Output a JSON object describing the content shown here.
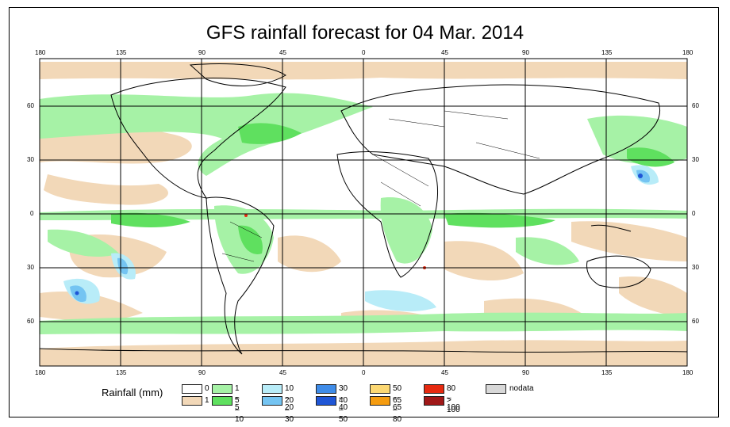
{
  "title": "GFS rainfall forecast for 04 Mar. 2014",
  "axes": {
    "lon_ticks": [
      "180",
      "135",
      "90",
      "45",
      "0",
      "45",
      "90",
      "135",
      "180"
    ],
    "lat_ticks": [
      "60",
      "30",
      "0",
      "30",
      "60"
    ]
  },
  "legend": {
    "title": "Rainfall (mm)",
    "items": [
      {
        "label": "0",
        "color": "#ffffff"
      },
      {
        "label": "1",
        "color": "#f2d8b8"
      },
      {
        "label": "1 – 5",
        "color": "#a6f2a6"
      },
      {
        "label": "5 – 10",
        "color": "#5fe05f"
      },
      {
        "label": "10 – 20",
        "color": "#b8ecf8"
      },
      {
        "label": "20 – 30",
        "color": "#74c4f2"
      },
      {
        "label": "30 – 40",
        "color": "#3f8ce8"
      },
      {
        "label": "40 – 50",
        "color": "#1f56d6"
      },
      {
        "label": "50 – 65",
        "color": "#fcd873"
      },
      {
        "label": "65 – 80",
        "color": "#f59c10"
      },
      {
        "label": "80 – 100",
        "color": "#e62a10"
      },
      {
        "label": "> 100",
        "color": "#a01818"
      },
      {
        "label": "nodata",
        "color": "#d8d8d8"
      }
    ]
  }
}
